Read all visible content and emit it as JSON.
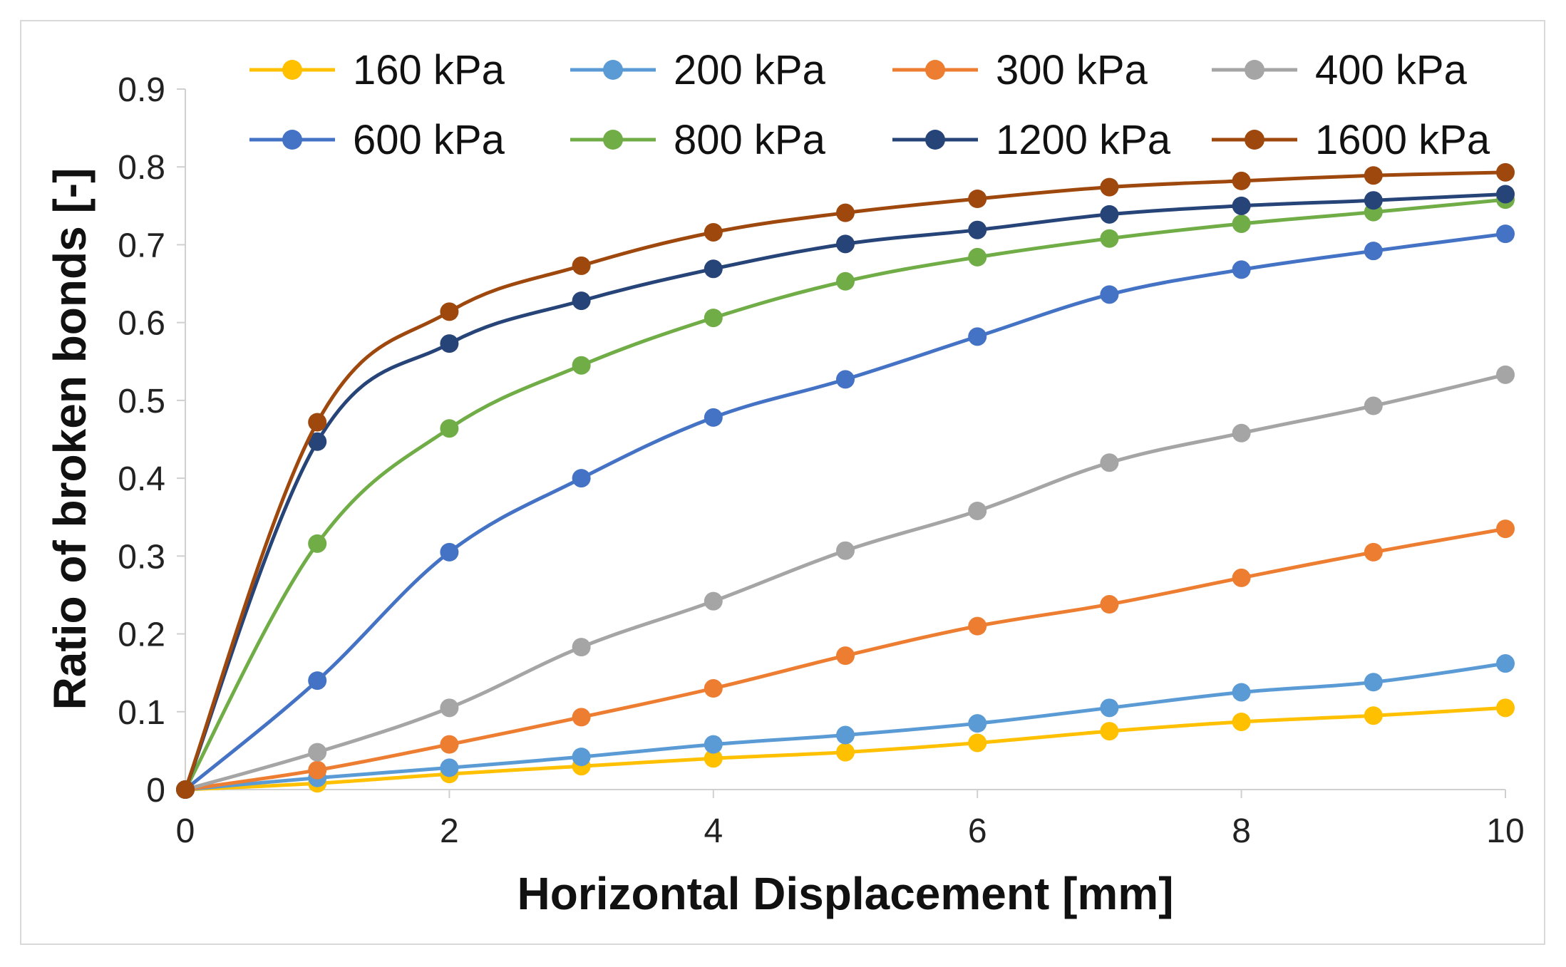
{
  "chart_data": {
    "type": "line",
    "title": "",
    "xlabel": "Horizontal Displacement [mm]",
    "ylabel": "Ratio of broken bonds [-]",
    "xlim": [
      0,
      10
    ],
    "ylim": [
      0,
      0.9
    ],
    "x_ticks": [
      "0",
      "2",
      "4",
      "6",
      "8",
      "10"
    ],
    "x_tick_values": [
      0,
      2,
      4,
      6,
      8,
      10
    ],
    "y_ticks": [
      "0",
      "0.1",
      "0.2",
      "0.3",
      "0.4",
      "0.5",
      "0.6",
      "0.7",
      "0.8",
      "0.9"
    ],
    "y_tick_values": [
      0,
      0.1,
      0.2,
      0.3,
      0.4,
      0.5,
      0.6,
      0.7,
      0.8,
      0.9
    ],
    "grid": false,
    "legend_position": "top",
    "x": [
      0,
      1,
      2,
      3,
      4,
      5,
      6,
      7,
      8,
      9,
      10
    ],
    "series": [
      {
        "name": "160 kPa",
        "color": "#FFC000",
        "values": [
          0,
          0.008,
          0.02,
          0.03,
          0.04,
          0.048,
          0.06,
          0.075,
          0.087,
          0.095,
          0.105
        ]
      },
      {
        "name": "200 kPa",
        "color": "#5B9BD5",
        "values": [
          0,
          0.015,
          0.028,
          0.042,
          0.058,
          0.07,
          0.085,
          0.105,
          0.125,
          0.138,
          0.162
        ]
      },
      {
        "name": "300 kPa",
        "color": "#ED7D31",
        "values": [
          0,
          0.025,
          0.058,
          0.093,
          0.13,
          0.172,
          0.21,
          0.238,
          0.272,
          0.305,
          0.335
        ]
      },
      {
        "name": "400 kPa",
        "color": "#A5A5A5",
        "values": [
          0,
          0.048,
          0.105,
          0.183,
          0.242,
          0.307,
          0.358,
          0.42,
          0.458,
          0.493,
          0.533
        ]
      },
      {
        "name": "600 kPa",
        "color": "#4472C4",
        "values": [
          0,
          0.14,
          0.305,
          0.4,
          0.478,
          0.527,
          0.582,
          0.636,
          0.668,
          0.692,
          0.714
        ]
      },
      {
        "name": "800 kPa",
        "color": "#70AD47",
        "values": [
          0,
          0.316,
          0.464,
          0.545,
          0.606,
          0.653,
          0.684,
          0.708,
          0.727,
          0.742,
          0.758
        ]
      },
      {
        "name": "1200 kPa",
        "color": "#264478",
        "values": [
          0,
          0.447,
          0.573,
          0.628,
          0.669,
          0.701,
          0.719,
          0.739,
          0.75,
          0.757,
          0.765
        ]
      },
      {
        "name": "1600 kPa",
        "color": "#9E480E",
        "values": [
          0,
          0.472,
          0.614,
          0.673,
          0.716,
          0.741,
          0.759,
          0.774,
          0.782,
          0.789,
          0.793
        ]
      }
    ]
  }
}
